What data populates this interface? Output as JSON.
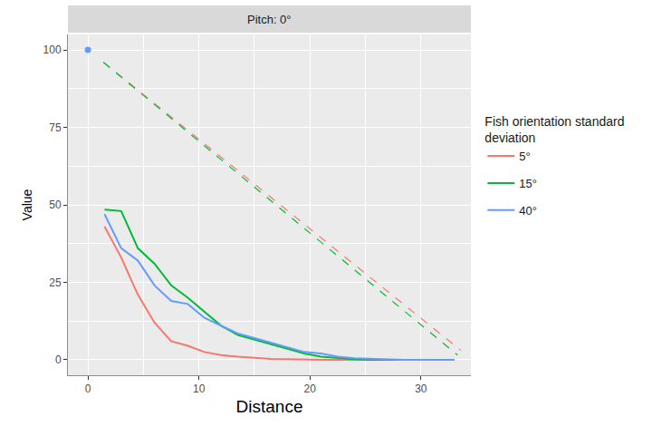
{
  "chart_data": {
    "type": "line",
    "title": "Pitch: 0°",
    "x_label": "Distance",
    "y_label": "Value",
    "legend_title": "Fish orientation standard deviation",
    "legend": "right",
    "grid": true,
    "xlim": [
      -1.8,
      34.5
    ],
    "xticks": [
      0,
      10,
      20,
      30
    ],
    "ylim": [
      -5,
      105
    ],
    "yticks": [
      0,
      25,
      50,
      75,
      100
    ],
    "series": [
      {
        "name": "5°",
        "color": "#F8766D",
        "line_style": "solid",
        "x": [
          1.5,
          3,
          4.5,
          6,
          7.5,
          9,
          10.5,
          12,
          13.5,
          15,
          16.5,
          18,
          19.5,
          21,
          22.5,
          24,
          25.5,
          27,
          28.5,
          30,
          31.5,
          33
        ],
        "values": [
          43,
          33,
          21,
          12,
          6,
          4.5,
          2.5,
          1.5,
          1,
          0.6,
          0.3,
          0.2,
          0,
          0,
          0,
          0,
          0,
          0,
          0,
          0,
          0,
          0
        ]
      },
      {
        "name": "15°",
        "color": "#00BA38",
        "line_style": "solid",
        "x": [
          1.5,
          3,
          4.5,
          6,
          7.5,
          9,
          10.5,
          12,
          13.5,
          15,
          16.5,
          18,
          19.5,
          21,
          22.5,
          24,
          25.5,
          27,
          28.5,
          30,
          31.5,
          33
        ],
        "values": [
          48.5,
          48,
          36,
          31,
          24,
          20,
          15.5,
          11,
          8,
          6.5,
          5,
          3.5,
          2,
          1,
          0.5,
          0.2,
          0,
          0,
          0,
          0,
          0,
          0
        ]
      },
      {
        "name": "40°",
        "color": "#619CFF",
        "line_style": "solid",
        "x": [
          1.5,
          3,
          4.5,
          6,
          7.5,
          9,
          10.5,
          12,
          13.5,
          15,
          16.5,
          18,
          19.5,
          21,
          22.5,
          24,
          25.5,
          27,
          28.5,
          30,
          31.5,
          33
        ],
        "values": [
          47,
          36,
          32,
          24,
          19,
          18,
          13.5,
          11,
          8.5,
          7,
          5.5,
          4,
          2.5,
          2,
          1,
          0.5,
          0.3,
          0,
          0,
          0,
          0,
          0
        ]
      },
      {
        "name": "5°",
        "color": "#F8766D",
        "line_style": "dashed",
        "x": [
          1.4,
          33.6
        ],
        "values": [
          96,
          3
        ]
      },
      {
        "name": "15°",
        "color": "#00BA38",
        "line_style": "dashed",
        "x": [
          1.4,
          33.3
        ],
        "values": [
          96,
          1.5
        ]
      },
      {
        "name": "40°",
        "color": "#619CFF",
        "marker": "circle",
        "x": [
          0
        ],
        "values": [
          100
        ]
      }
    ]
  }
}
